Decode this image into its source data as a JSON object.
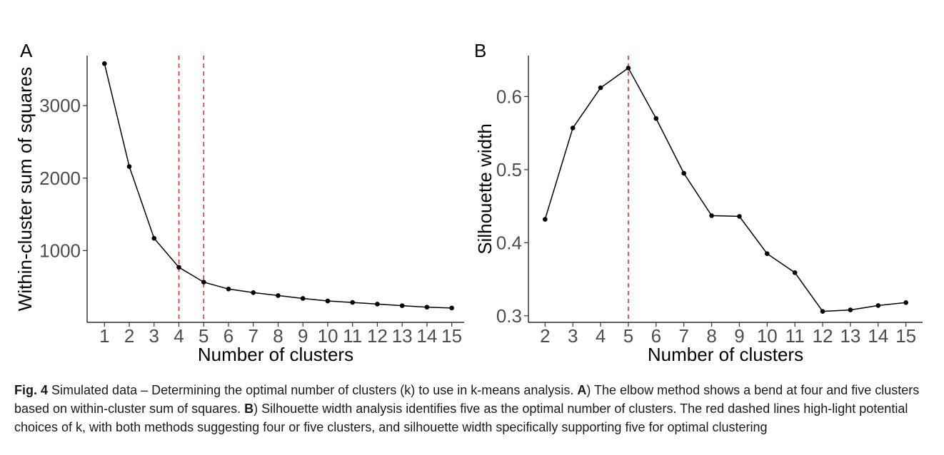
{
  "chart_data": [
    {
      "type": "line",
      "panel_label": "A",
      "xlabel": "Number of clusters",
      "ylabel": "Within-cluster sum of squares",
      "x": [
        1,
        2,
        3,
        4,
        5,
        6,
        7,
        8,
        9,
        10,
        11,
        12,
        13,
        14,
        15
      ],
      "y": [
        3580,
        2160,
        1170,
        770,
        565,
        470,
        420,
        380,
        340,
        305,
        285,
        262,
        240,
        220,
        208
      ],
      "x_ticks": [
        1,
        2,
        3,
        4,
        5,
        6,
        7,
        8,
        9,
        10,
        11,
        12,
        13,
        14,
        15
      ],
      "y_ticks": [
        1000,
        2000,
        3000
      ],
      "xlim": [
        0.3,
        15.5
      ],
      "ylim": [
        10,
        3690
      ],
      "reference_lines": [
        4,
        5
      ],
      "reference_color": "#e8312f",
      "line_color": "#000000"
    },
    {
      "type": "line",
      "panel_label": "B",
      "xlabel": "Number of clusters",
      "ylabel": "Silhouette width",
      "x": [
        2,
        3,
        4,
        5,
        6,
        7,
        8,
        9,
        10,
        11,
        12,
        13,
        14,
        15
      ],
      "y": [
        0.432,
        0.557,
        0.612,
        0.639,
        0.57,
        0.495,
        0.437,
        0.436,
        0.385,
        0.359,
        0.306,
        0.308,
        0.314,
        0.318
      ],
      "x_ticks": [
        2,
        3,
        4,
        5,
        6,
        7,
        8,
        9,
        10,
        11,
        12,
        13,
        14,
        15
      ],
      "y_ticks": [
        0.3,
        0.4,
        0.5,
        0.6
      ],
      "xlim": [
        1.4,
        15.6
      ],
      "ylim": [
        0.291,
        0.656
      ],
      "reference_lines": [
        5
      ],
      "reference_color": "#e8312f",
      "line_color": "#000000"
    }
  ],
  "caption": {
    "fig_label": "Fig. 4",
    "part1": "  Simulated data – Determining the optimal number of clusters (k) to use in k-means analysis. ",
    "labelA": "A",
    "part2": ") The elbow method shows a bend at four and five clusters based on within-cluster sum of squares. ",
    "labelB": "B",
    "part3": ") Silhouette width analysis identifies five as the optimal number of clusters. The red dashed lines high-light potential choices of k, with both methods suggesting four or five clusters, and silhouette width specifically supporting five for optimal clustering"
  }
}
